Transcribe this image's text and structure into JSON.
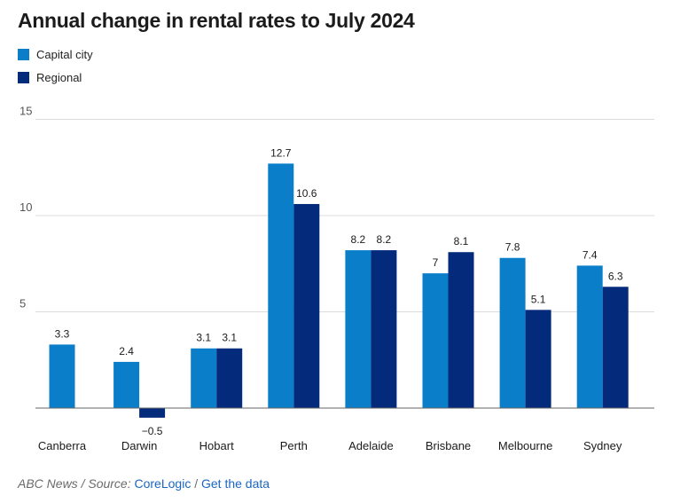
{
  "chart_data": {
    "type": "bar",
    "title": "Annual change in rental rates to July 2024",
    "categories": [
      "Canberra",
      "Darwin",
      "Hobart",
      "Perth",
      "Adelaide",
      "Brisbane",
      "Melbourne",
      "Sydney"
    ],
    "series": [
      {
        "name": "Capital city",
        "color": "#0a7ec9",
        "values": [
          3.3,
          2.4,
          3.1,
          12.7,
          8.2,
          7,
          7.8,
          7.4
        ],
        "labels": [
          "3.3",
          "2.4",
          "3.1",
          "12.7",
          "8.2",
          "7",
          "7.8",
          "7.4"
        ]
      },
      {
        "name": "Regional",
        "color": "#042a7c",
        "values": [
          null,
          -0.5,
          3.1,
          10.6,
          8.2,
          8.1,
          5.1,
          6.3
        ],
        "labels": [
          "",
          "−0.5",
          "3.1",
          "10.6",
          "8.2",
          "8.1",
          "5.1",
          "6.3"
        ]
      }
    ],
    "yticks": [
      {
        "value": 5,
        "label": "5"
      },
      {
        "value": 10,
        "label": "10"
      },
      {
        "value": 15,
        "label": "15"
      }
    ],
    "ylim": [
      0,
      15
    ],
    "xlabel": "",
    "ylabel": "",
    "legend_position": "top-left"
  },
  "footer": {
    "publisher": "ABC News",
    "sep1": " / ",
    "source_label": "Source: ",
    "source_name": "CoreLogic",
    "sep2": " / ",
    "data_link": "Get the data"
  }
}
